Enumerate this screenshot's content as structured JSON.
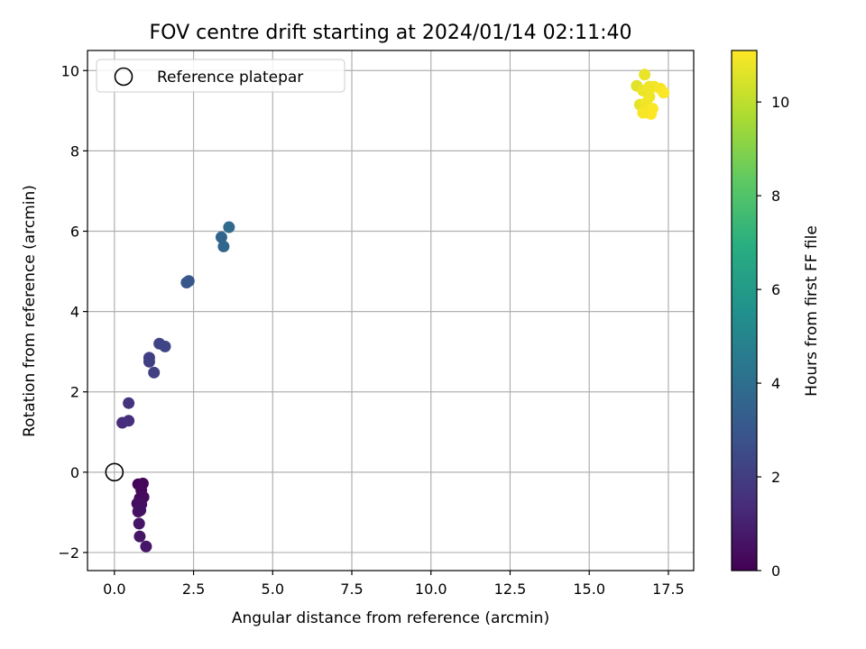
{
  "chart_data": {
    "type": "scatter",
    "title": "FOV centre drift starting at 2024/01/14 02:11:40",
    "xlabel": "Angular distance from reference (arcmin)",
    "ylabel": "Rotation from reference (arcmin)",
    "xlim": [
      -0.85,
      18.3
    ],
    "ylim": [
      -2.45,
      10.5
    ],
    "xticks": [
      0,
      2.5,
      5,
      7.5,
      10,
      12.5,
      15,
      17.5
    ],
    "xtick_labels": [
      "0.0",
      "2.5",
      "5.0",
      "7.5",
      "10.0",
      "12.5",
      "15.0",
      "17.5"
    ],
    "yticks": [
      -2,
      0,
      2,
      4,
      6,
      8,
      10
    ],
    "ytick_labels": [
      "−2",
      "0",
      "2",
      "4",
      "6",
      "8",
      "10"
    ],
    "grid": true,
    "legend_position": "top-left",
    "legend": {
      "label": "Reference platepar",
      "marker": "open-circle"
    },
    "reference_point": {
      "x": 0,
      "y": 0
    },
    "colorbar": {
      "label": "Hours from first FF file",
      "colormap": "viridis",
      "range": [
        0,
        11.1
      ],
      "ticks": [
        0,
        2,
        4,
        6,
        8,
        10
      ],
      "tick_labels": [
        "0",
        "2",
        "4",
        "6",
        "8",
        "10"
      ]
    },
    "points": [
      {
        "x": 0.75,
        "y": -0.3,
        "c": 0.1
      },
      {
        "x": 0.9,
        "y": -0.28,
        "c": 0.2
      },
      {
        "x": 0.85,
        "y": -0.45,
        "c": 0.25
      },
      {
        "x": 0.8,
        "y": -0.65,
        "c": 0.3
      },
      {
        "x": 0.92,
        "y": -0.62,
        "c": 0.35
      },
      {
        "x": 0.72,
        "y": -0.78,
        "c": 0.4
      },
      {
        "x": 0.85,
        "y": -0.8,
        "c": 0.45
      },
      {
        "x": 0.75,
        "y": -0.98,
        "c": 0.5
      },
      {
        "x": 0.82,
        "y": -0.95,
        "c": 0.55
      },
      {
        "x": 0.78,
        "y": -1.28,
        "c": 0.6
      },
      {
        "x": 0.8,
        "y": -1.6,
        "c": 0.65
      },
      {
        "x": 1.0,
        "y": -1.85,
        "c": 0.7
      },
      {
        "x": 0.25,
        "y": 1.23,
        "c": 1.4
      },
      {
        "x": 0.45,
        "y": 1.28,
        "c": 1.5
      },
      {
        "x": 0.45,
        "y": 1.72,
        "c": 1.6
      },
      {
        "x": 1.1,
        "y": 2.75,
        "c": 2.0
      },
      {
        "x": 1.1,
        "y": 2.85,
        "c": 2.05
      },
      {
        "x": 1.25,
        "y": 2.48,
        "c": 2.1
      },
      {
        "x": 1.42,
        "y": 3.2,
        "c": 2.2
      },
      {
        "x": 1.6,
        "y": 3.13,
        "c": 2.3
      },
      {
        "x": 2.28,
        "y": 4.72,
        "c": 3.0
      },
      {
        "x": 2.35,
        "y": 4.76,
        "c": 3.05
      },
      {
        "x": 3.38,
        "y": 5.85,
        "c": 3.6
      },
      {
        "x": 3.45,
        "y": 5.62,
        "c": 3.7
      },
      {
        "x": 3.62,
        "y": 6.1,
        "c": 3.8
      },
      {
        "x": 16.5,
        "y": 9.62,
        "c": 10.6
      },
      {
        "x": 16.6,
        "y": 9.15,
        "c": 10.7
      },
      {
        "x": 16.75,
        "y": 9.9,
        "c": 10.75
      },
      {
        "x": 16.7,
        "y": 9.5,
        "c": 10.8
      },
      {
        "x": 16.9,
        "y": 9.35,
        "c": 10.85
      },
      {
        "x": 16.8,
        "y": 9.2,
        "c": 10.9
      },
      {
        "x": 17.05,
        "y": 9.6,
        "c": 10.95
      },
      {
        "x": 17.25,
        "y": 9.55,
        "c": 11.0
      },
      {
        "x": 17.35,
        "y": 9.45,
        "c": 11.05
      },
      {
        "x": 16.85,
        "y": 8.95,
        "c": 11.0
      },
      {
        "x": 17.0,
        "y": 9.05,
        "c": 11.05
      },
      {
        "x": 16.9,
        "y": 9.6,
        "c": 10.9
      },
      {
        "x": 16.95,
        "y": 8.92,
        "c": 11.1
      },
      {
        "x": 16.7,
        "y": 8.95,
        "c": 11.0
      }
    ]
  }
}
